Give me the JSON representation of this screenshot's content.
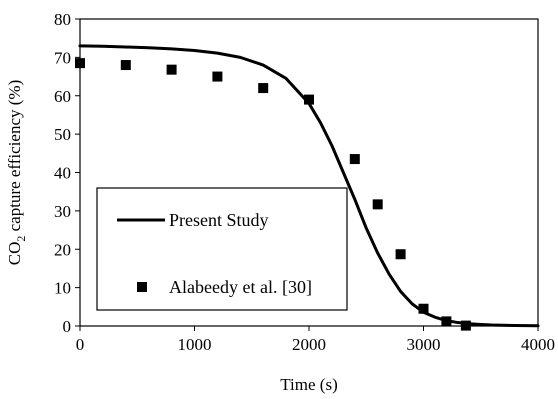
{
  "chart_data": {
    "type": "scatter",
    "title": "",
    "xlabel": "Time (s)",
    "ylabel_main": "CO",
    "ylabel_sub": "2",
    "ylabel_rest": " capture efficiency (%)",
    "xlim": [
      0,
      4000
    ],
    "ylim": [
      0,
      80
    ],
    "xticks": [
      0,
      1000,
      2000,
      3000,
      4000
    ],
    "yticks": [
      0,
      10,
      20,
      30,
      40,
      50,
      60,
      70,
      80
    ],
    "grid": false,
    "legend_position": "bottom-left",
    "series": [
      {
        "name": "Present Study",
        "kind": "line",
        "color": "#000000",
        "x": [
          0,
          200,
          400,
          600,
          800,
          1000,
          1200,
          1400,
          1600,
          1800,
          2000,
          2100,
          2200,
          2300,
          2400,
          2500,
          2600,
          2700,
          2800,
          2900,
          3000,
          3100,
          3200,
          3300,
          3400,
          3500,
          3600,
          3800,
          4000
        ],
        "y": [
          73.0,
          72.9,
          72.7,
          72.5,
          72.2,
          71.8,
          71.1,
          70.0,
          68.0,
          64.5,
          58.0,
          53.0,
          47.0,
          40.0,
          33.0,
          25.5,
          19.0,
          13.5,
          9.0,
          5.8,
          3.6,
          2.3,
          1.4,
          0.9,
          0.6,
          0.4,
          0.25,
          0.12,
          0.05
        ]
      },
      {
        "name": "Alabeedy et al. [30]",
        "kind": "scatter",
        "marker": "square",
        "color": "#000000",
        "x": [
          0,
          400,
          800,
          1200,
          1600,
          2000,
          2400,
          2600,
          2800,
          3000,
          3200,
          3370
        ],
        "y": [
          68.5,
          68.0,
          66.8,
          65.0,
          62.0,
          59.0,
          43.5,
          31.7,
          18.7,
          4.5,
          1.2,
          0.1
        ]
      }
    ]
  }
}
